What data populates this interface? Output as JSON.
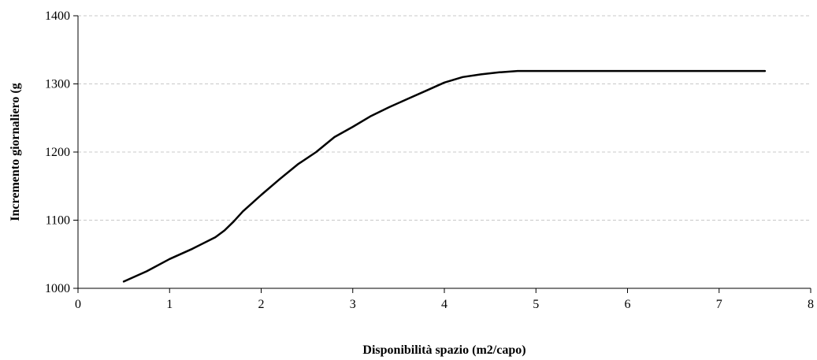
{
  "chart_data": {
    "type": "line",
    "title": "",
    "xlabel": "Disponibilità spazio (m2/capo)",
    "ylabel": "Incremento giornaliero (g",
    "xlim": [
      0,
      8
    ],
    "ylim": [
      1000,
      1400
    ],
    "x_ticks": [
      0,
      1,
      2,
      3,
      4,
      5,
      6,
      7,
      8
    ],
    "y_ticks": [
      1000,
      1100,
      1200,
      1300,
      1400
    ],
    "grid": "horizontal-dashed",
    "legend": "none",
    "series": [
      {
        "color": "#000000",
        "x": [
          0.5,
          0.75,
          1.0,
          1.25,
          1.5,
          1.6,
          1.7,
          1.8,
          1.9,
          2.0,
          2.2,
          2.4,
          2.6,
          2.8,
          3.0,
          3.2,
          3.4,
          3.6,
          3.8,
          4.0,
          4.2,
          4.4,
          4.6,
          4.8,
          5.0,
          5.5,
          6.0,
          6.5,
          7.0,
          7.5
        ],
        "y": [
          1010,
          1025,
          1043,
          1058,
          1075,
          1085,
          1098,
          1113,
          1125,
          1137,
          1160,
          1182,
          1200,
          1222,
          1237,
          1253,
          1266,
          1278,
          1290,
          1302,
          1310,
          1314,
          1317,
          1319,
          1319,
          1319,
          1319,
          1319,
          1319,
          1319
        ]
      }
    ]
  }
}
